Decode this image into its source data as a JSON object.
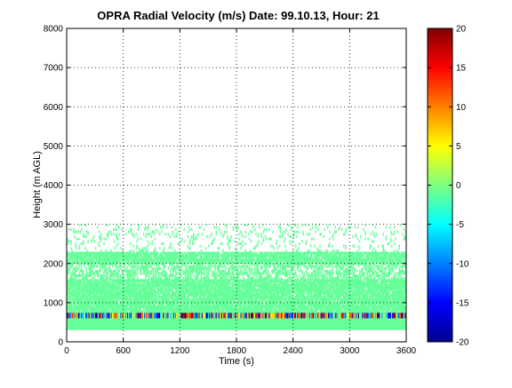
{
  "chart_data": {
    "type": "heatmap",
    "title": "OPRA Radial Velocity (m/s)  Date: 99.10.13, Hour: 21",
    "xlabel": "Time (s)",
    "ylabel": "Height (m AGL)",
    "xlim": [
      0,
      3600
    ],
    "ylim": [
      0,
      8000
    ],
    "x_ticks": [
      0,
      600,
      1200,
      1800,
      2400,
      3000,
      3600
    ],
    "y_ticks": [
      0,
      1000,
      2000,
      3000,
      4000,
      5000,
      6000,
      7000,
      8000
    ],
    "grid": true,
    "colormap": "jet",
    "colorbar": {
      "range": [
        -20,
        20
      ],
      "ticks": [
        -20,
        -15,
        -10,
        -5,
        0,
        5,
        10,
        15,
        20
      ]
    },
    "layers": [
      {
        "y_range": [
          0,
          200
        ],
        "velocity": 0,
        "coverage": "none"
      },
      {
        "y_range": [
          300,
          600
        ],
        "velocity": -1,
        "coverage": "continuous"
      },
      {
        "y_range": [
          600,
          750
        ],
        "velocity": "mixed -20..20",
        "coverage": "continuous"
      },
      {
        "y_range": [
          750,
          1600
        ],
        "velocity": -1,
        "coverage": "mostly continuous"
      },
      {
        "y_range": [
          1600,
          2000
        ],
        "velocity": -1,
        "coverage": "patchy"
      },
      {
        "y_range": [
          2000,
          2300
        ],
        "velocity": -1,
        "coverage": "mostly continuous"
      },
      {
        "y_range": [
          2300,
          3000
        ],
        "velocity": -1,
        "coverage": "sparse"
      }
    ]
  }
}
